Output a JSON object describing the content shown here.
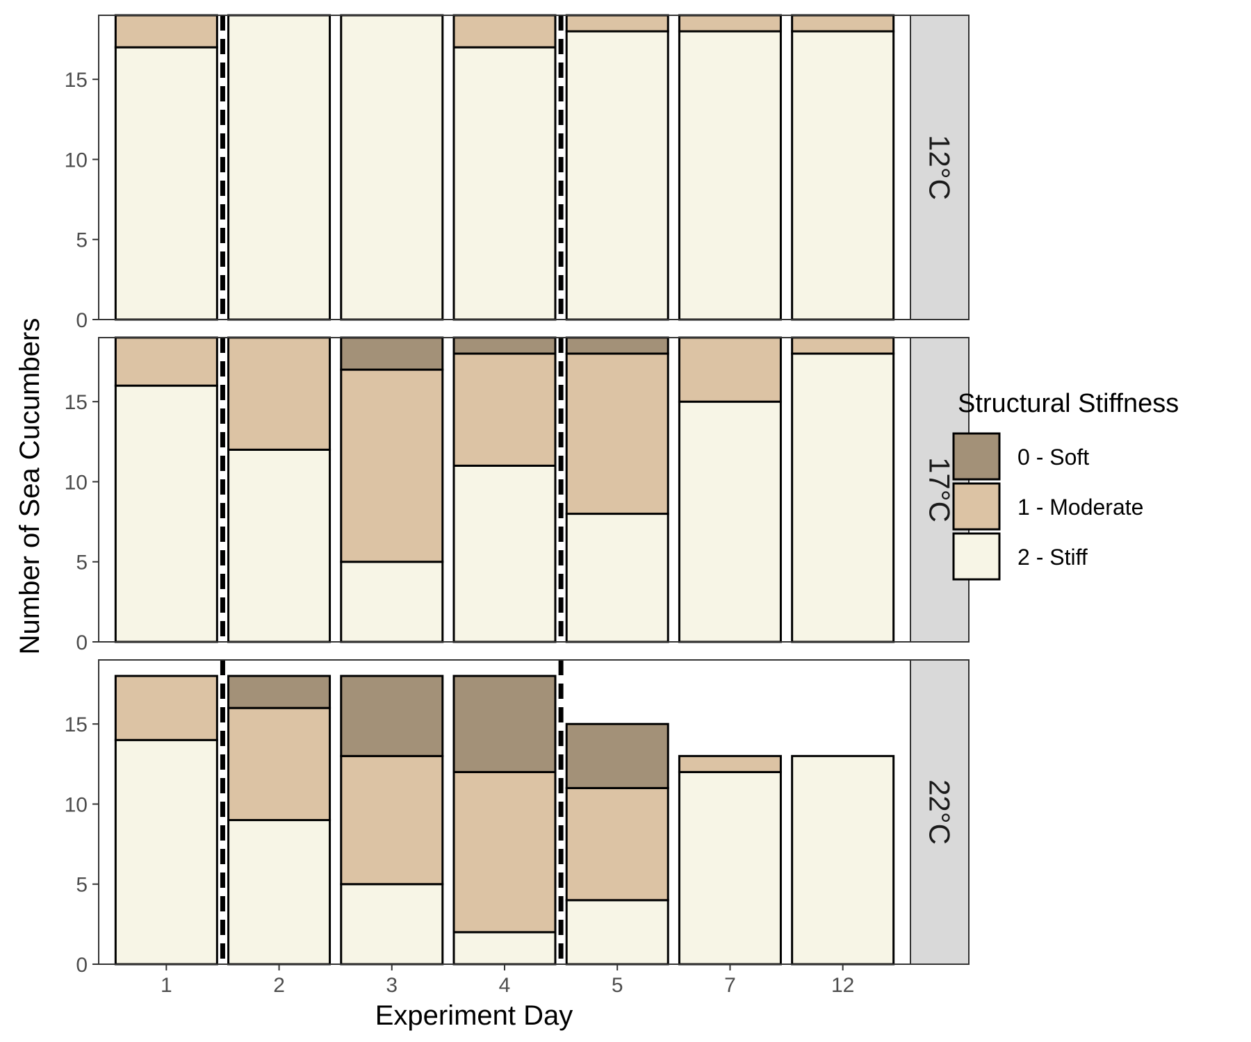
{
  "chart_data": {
    "type": "bar",
    "stacked": true,
    "facet_by": "temperature",
    "categories": [
      "1",
      "2",
      "3",
      "4",
      "5",
      "7",
      "12"
    ],
    "xlabel": "Experiment Day",
    "ylabel": "Number of Sea Cucumbers",
    "ylim": [
      0,
      19
    ],
    "yticks": [
      0,
      5,
      10,
      15
    ],
    "legend": {
      "title": "Structural Stiffness",
      "placement": "right",
      "entries": [
        "0 - Soft",
        "1 - Moderate",
        "2 - Stiff"
      ]
    },
    "colors": {
      "0 - Soft": "#a39178",
      "1 - Moderate": "#dcc3a4",
      "2 - Stiff": "#f7f5e6",
      "strip": "#d9d9d9",
      "outline": "#000000"
    },
    "reference_lines": {
      "style": "dashed",
      "between_categories": [
        [
          "1",
          "2"
        ],
        [
          "4",
          "5"
        ]
      ]
    },
    "panels": [
      {
        "label": "12°C",
        "series": [
          {
            "name": "2 - Stiff",
            "values": [
              17,
              19,
              19,
              17,
              18,
              18,
              18
            ]
          },
          {
            "name": "1 - Moderate",
            "values": [
              2,
              0,
              0,
              2,
              1,
              1,
              1
            ]
          },
          {
            "name": "0 - Soft",
            "values": [
              0,
              0,
              0,
              0,
              0,
              0,
              0
            ]
          }
        ]
      },
      {
        "label": "17°C",
        "series": [
          {
            "name": "2 - Stiff",
            "values": [
              16,
              12,
              5,
              11,
              8,
              15,
              18
            ]
          },
          {
            "name": "1 - Moderate",
            "values": [
              3,
              7,
              12,
              7,
              10,
              4,
              1
            ]
          },
          {
            "name": "0 - Soft",
            "values": [
              0,
              0,
              2,
              1,
              1,
              0,
              0
            ]
          }
        ]
      },
      {
        "label": "22°C",
        "series": [
          {
            "name": "2 - Stiff",
            "values": [
              14,
              9,
              5,
              2,
              4,
              12,
              13
            ]
          },
          {
            "name": "1 - Moderate",
            "values": [
              4,
              7,
              8,
              10,
              7,
              1,
              0
            ]
          },
          {
            "name": "0 - Soft",
            "values": [
              0,
              2,
              5,
              6,
              4,
              0,
              0
            ]
          }
        ]
      }
    ]
  }
}
